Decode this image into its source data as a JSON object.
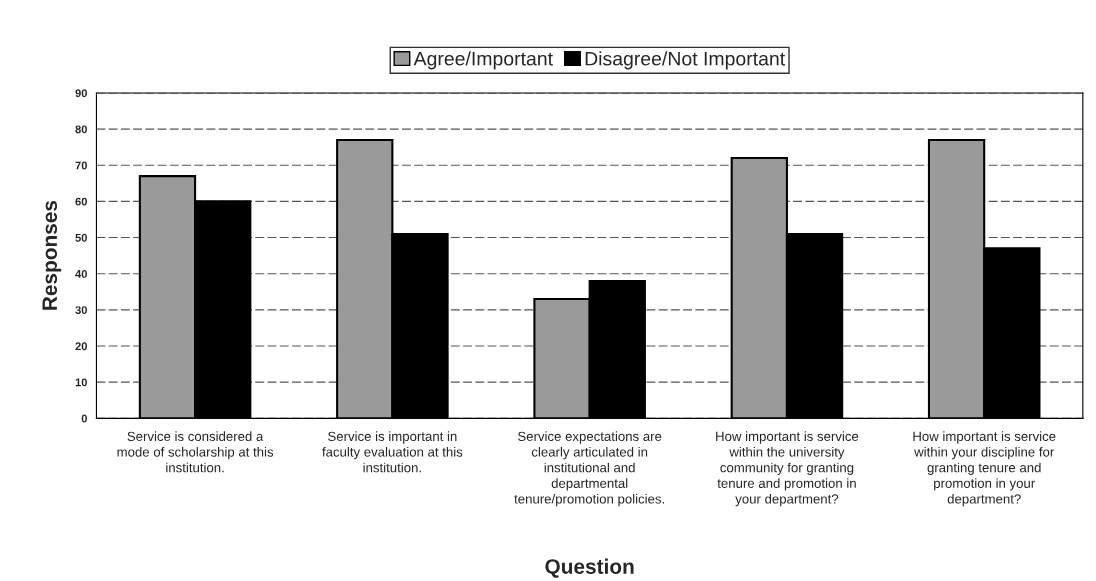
{
  "chart_data": {
    "type": "bar",
    "xlabel": "Question",
    "ylabel": "Responses",
    "categories": [
      "Service is considered a\nmode of scholarship at this\ninstitution.",
      "Service is important in\nfaculty evaluation at this\ninstitution.",
      "Service expectations are\nclearly articulated in\ninstitutional and\ndepartmental\ntenure/promotion policies.",
      "How important is service\nwithin the university\ncommunity for granting\ntenure and promotion in\nyour department?",
      "How important is service\nwithin your discipline for\ngranting tenure and\npromotion in your\ndepartment?"
    ],
    "series": [
      {
        "name": "Agree/Important",
        "color": "#9a9a9a",
        "values": [
          67,
          77,
          33,
          72,
          77
        ]
      },
      {
        "name": "Disagree/Not Important",
        "color": "#000000",
        "values": [
          60,
          51,
          38,
          51,
          47
        ]
      }
    ],
    "ylim": [
      0,
      90
    ],
    "yticks": [
      0,
      10,
      20,
      30,
      40,
      50,
      60,
      70,
      80,
      90
    ],
    "grid": "y",
    "legend": "top"
  }
}
